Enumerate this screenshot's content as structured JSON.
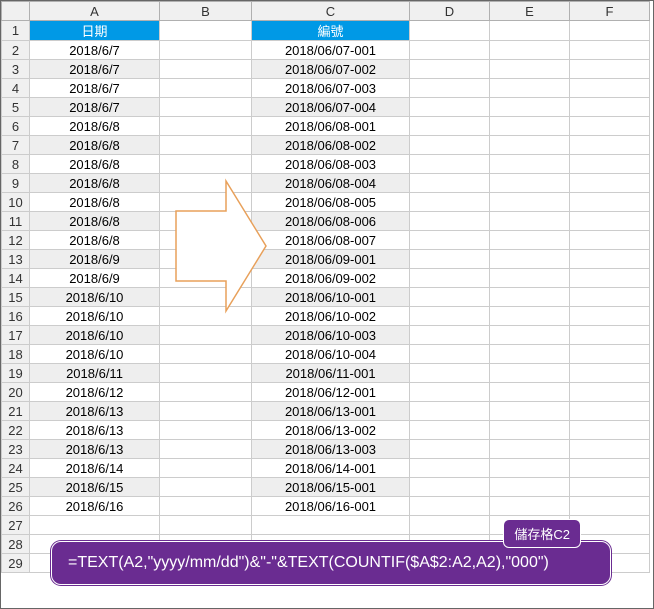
{
  "columns": [
    "A",
    "B",
    "C",
    "D",
    "E",
    "F"
  ],
  "col_widths": {
    "rowhdr": 28,
    "A": 130,
    "B": 92,
    "C": 158,
    "D": 80,
    "E": 80,
    "F": 80
  },
  "headers": {
    "A": "日期",
    "C": "編號"
  },
  "header_bg": "#0099e6",
  "header_fg": "#ffffff",
  "grid_color": "#cccccc",
  "alt_row_bg": "#eeeeee",
  "rows": [
    {
      "n": 1,
      "A_hdr": true,
      "C_hdr": true
    },
    {
      "n": 2,
      "A": "2018/6/7",
      "C": "2018/06/07-001"
    },
    {
      "n": 3,
      "A": "2018/6/7",
      "C": "2018/06/07-002"
    },
    {
      "n": 4,
      "A": "2018/6/7",
      "C": "2018/06/07-003"
    },
    {
      "n": 5,
      "A": "2018/6/7",
      "C": "2018/06/07-004"
    },
    {
      "n": 6,
      "A": "2018/6/8",
      "C": "2018/06/08-001"
    },
    {
      "n": 7,
      "A": "2018/6/8",
      "C": "2018/06/08-002"
    },
    {
      "n": 8,
      "A": "2018/6/8",
      "C": "2018/06/08-003"
    },
    {
      "n": 9,
      "A": "2018/6/8",
      "C": "2018/06/08-004"
    },
    {
      "n": 10,
      "A": "2018/6/8",
      "C": "2018/06/08-005"
    },
    {
      "n": 11,
      "A": "2018/6/8",
      "C": "2018/06/08-006"
    },
    {
      "n": 12,
      "A": "2018/6/8",
      "C": "2018/06/08-007"
    },
    {
      "n": 13,
      "A": "2018/6/9",
      "C": "2018/06/09-001"
    },
    {
      "n": 14,
      "A": "2018/6/9",
      "C": "2018/06/09-002"
    },
    {
      "n": 15,
      "A": "2018/6/10",
      "C": "2018/06/10-001"
    },
    {
      "n": 16,
      "A": "2018/6/10",
      "C": "2018/06/10-002"
    },
    {
      "n": 17,
      "A": "2018/6/10",
      "C": "2018/06/10-003"
    },
    {
      "n": 18,
      "A": "2018/6/10",
      "C": "2018/06/10-004"
    },
    {
      "n": 19,
      "A": "2018/6/11",
      "C": "2018/06/11-001"
    },
    {
      "n": 20,
      "A": "2018/6/12",
      "C": "2018/06/12-001"
    },
    {
      "n": 21,
      "A": "2018/6/13",
      "C": "2018/06/13-001"
    },
    {
      "n": 22,
      "A": "2018/6/13",
      "C": "2018/06/13-002"
    },
    {
      "n": 23,
      "A": "2018/6/13",
      "C": "2018/06/13-003"
    },
    {
      "n": 24,
      "A": "2018/6/14",
      "C": "2018/06/14-001"
    },
    {
      "n": 25,
      "A": "2018/6/15",
      "C": "2018/06/15-001"
    },
    {
      "n": 26,
      "A": "2018/6/16",
      "C": "2018/06/16-001"
    },
    {
      "n": 27,
      "A": "",
      "C": ""
    },
    {
      "n": 28,
      "A": "",
      "C": ""
    },
    {
      "n": 29,
      "A": "",
      "C": ""
    }
  ],
  "arrow": {
    "stroke": "#e8a05a",
    "fill": "#ffffff",
    "stroke_width": 1.5
  },
  "callout": {
    "label": "儲存格C2",
    "formula": "=TEXT(A2,\"yyyy/mm/dd\")&\"-\"&TEXT(COUNTIF($A$2:A2,A2),\"000\")",
    "bg": "#6a2c91",
    "fg": "#ffffff"
  }
}
